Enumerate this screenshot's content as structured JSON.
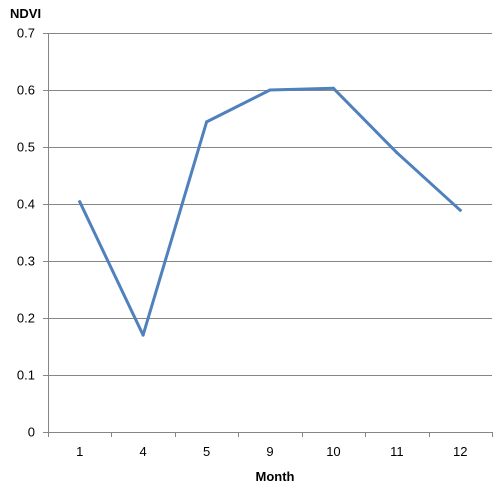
{
  "chart_data": {
    "type": "line",
    "title": "",
    "xlabel": "Month",
    "ylabel": "NDVI",
    "categories": [
      "1",
      "4",
      "5",
      "9",
      "10",
      "11",
      "12"
    ],
    "series": [
      {
        "values": [
          0.404,
          0.17,
          0.544,
          0.6,
          0.603,
          0.49,
          0.389
        ],
        "color": "#4F81BD"
      }
    ],
    "ylim": [
      0,
      0.7
    ],
    "yticks": [
      "0",
      "0.1",
      "0.2",
      "0.3",
      "0.4",
      "0.5",
      "0.6",
      "0.7"
    ],
    "grid": true,
    "legend": "none"
  },
  "colors": {
    "gridline": "#868686",
    "axis": "#868686",
    "series": "#4F81BD"
  }
}
